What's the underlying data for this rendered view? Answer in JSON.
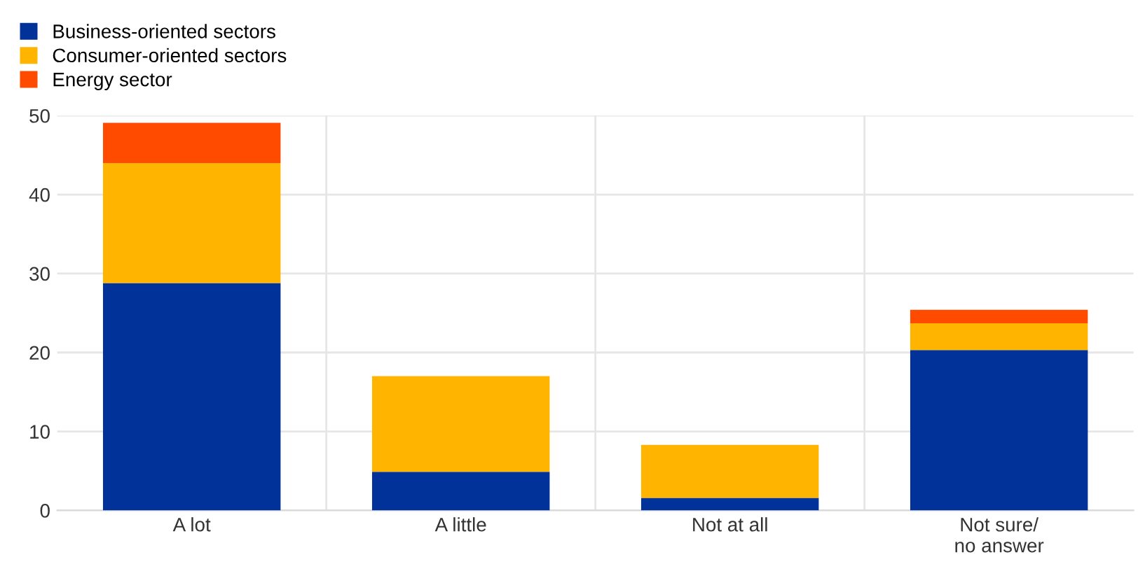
{
  "chart_data": {
    "type": "bar",
    "stacked": true,
    "categories": [
      "A lot",
      "A little",
      "Not at all",
      "Not sure/\nno answer"
    ],
    "series": [
      {
        "name": "Business-oriented sectors",
        "color": "#003299",
        "values": [
          28.8,
          4.9,
          1.6,
          20.3
        ]
      },
      {
        "name": "Consumer-oriented sectors",
        "color": "#ffb400",
        "values": [
          15.2,
          12.1,
          6.7,
          3.4
        ]
      },
      {
        "name": "Energy sector",
        "color": "#ff4b00",
        "values": [
          5.1,
          0,
          0,
          1.7
        ]
      }
    ],
    "ylim": [
      0,
      50
    ],
    "yticks": [
      0,
      10,
      20,
      30,
      40,
      50
    ],
    "grid": true,
    "legend": "top left"
  }
}
